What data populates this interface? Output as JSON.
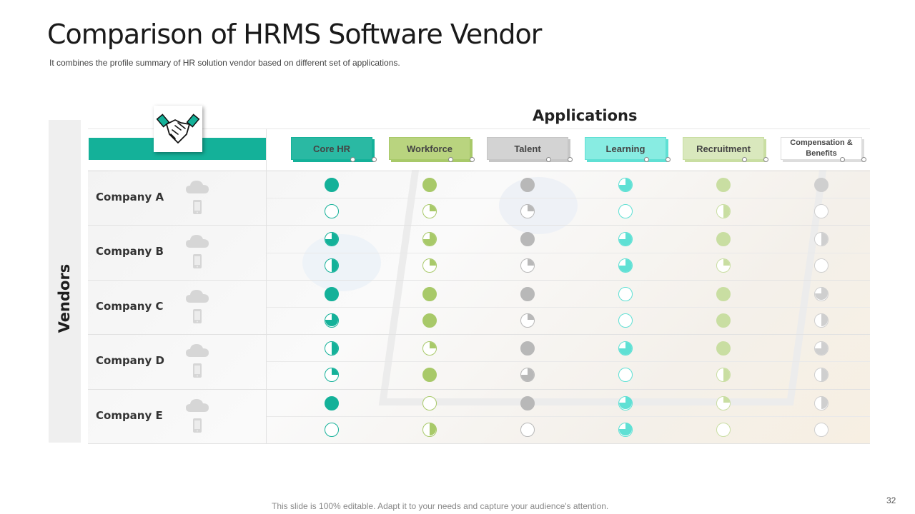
{
  "title": "Comparison of HRMS Software Vendor",
  "subtitle": "It combines the profile summary of HR solution vendor  based on different set of  applications.",
  "applications_title": "Applications",
  "vendors_label": "Vendors",
  "header_icon": "handshake-icon",
  "applications": [
    {
      "label": "Core HR",
      "color": "#14b199",
      "fill": "#2ab9a3"
    },
    {
      "label": "Workforce",
      "color": "#a8c969",
      "fill": "#b9d47f"
    },
    {
      "label": "Talent",
      "color": "#c6c6c6",
      "fill": "#d3d3d3"
    },
    {
      "label": "Learning",
      "color": "#5fe0d4",
      "fill": "#88ece2"
    },
    {
      "label": "Recruitment",
      "color": "#c9dea2",
      "fill": "#d9e8bd"
    },
    {
      "label": "Compensation & Benefits",
      "color": "#dddddd",
      "fill": "#ffffff"
    }
  ],
  "row_icons": [
    "cloud-icon",
    "phone-icon"
  ],
  "companies": [
    {
      "name": "Company A",
      "ratings": [
        [
          1,
          0
        ],
        [
          1,
          0.25
        ],
        [
          1,
          0.25
        ],
        [
          0.75,
          0
        ],
        [
          1,
          0.5
        ],
        [
          1,
          0
        ]
      ]
    },
    {
      "name": "Company B",
      "ratings": [
        [
          0.75,
          0.5
        ],
        [
          0.75,
          0.25
        ],
        [
          1,
          0.25
        ],
        [
          0.75,
          0.75
        ],
        [
          1,
          0.25
        ],
        [
          0.5,
          0
        ]
      ]
    },
    {
      "name": "Company C",
      "ratings": [
        [
          1,
          0.75
        ],
        [
          1,
          1
        ],
        [
          1,
          0.25
        ],
        [
          0,
          0
        ],
        [
          1,
          1
        ],
        [
          0.75,
          0.5
        ]
      ]
    },
    {
      "name": "Company D",
      "ratings": [
        [
          0.5,
          0.25
        ],
        [
          0.25,
          1
        ],
        [
          1,
          0.75
        ],
        [
          0.75,
          0
        ],
        [
          1,
          0.5
        ],
        [
          0.75,
          0.5
        ]
      ]
    },
    {
      "name": "Company E",
      "ratings": [
        [
          1,
          0
        ],
        [
          0,
          0.5
        ],
        [
          1,
          0
        ],
        [
          0.75,
          0.75
        ],
        [
          0.25,
          0
        ],
        [
          0.5,
          0
        ]
      ]
    }
  ],
  "footer": "This slide is 100% editable. Adapt it to your needs and capture your audience's attention.",
  "page_number": "32"
}
